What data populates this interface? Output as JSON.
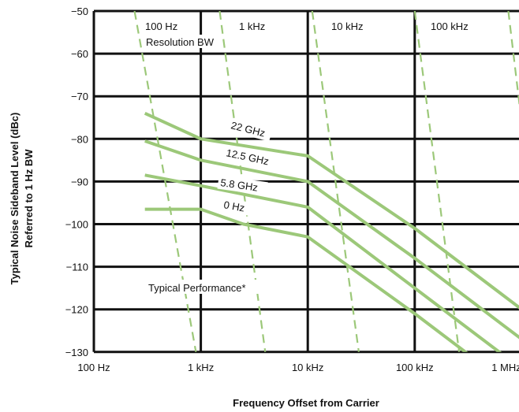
{
  "chart_data": {
    "type": "line",
    "title": "",
    "xlabel": "Frequency Offset from Carrier",
    "ylabel": "Typical Noise Sideband Level (dBc)",
    "ylabel2": "Referred to 1 Hz BW",
    "x_scale": "log",
    "x_ticks": [
      100,
      1000,
      10000,
      100000,
      1000000
    ],
    "x_tick_labels": [
      "100 Hz",
      "1 kHz",
      "10 kHz",
      "100 kHz",
      "1 MHz"
    ],
    "y_ticks": [
      -50,
      -60,
      -70,
      -80,
      -90,
      -100,
      -110,
      -120,
      -130
    ],
    "y_tick_labels": [
      "−50",
      "−60",
      "−70",
      "−80",
      "−90",
      "−100",
      "−110",
      "−120",
      "−130"
    ],
    "xlim": [
      100,
      1000000
    ],
    "ylim": [
      -130,
      -50
    ],
    "grid": true,
    "series": [
      {
        "name": "22 GHz",
        "x": [
          300,
          1000,
          10000,
          100000,
          1000000
        ],
        "y": [
          -74,
          -80,
          -84,
          -101,
          -120
        ],
        "color": "#9cc879"
      },
      {
        "name": "12.5 GHz",
        "x": [
          300,
          1000,
          10000,
          100000,
          1000000
        ],
        "y": [
          -80.5,
          -85,
          -90,
          -108,
          -127
        ],
        "color": "#9cc879"
      },
      {
        "name": "5.8 GHz",
        "x": [
          300,
          1000,
          10000,
          100000,
          1000000
        ],
        "y": [
          -88.5,
          -91,
          -96,
          -115,
          -134
        ],
        "color": "#9cc879"
      },
      {
        "name": "0 Hz",
        "x": [
          300,
          1000,
          2500,
          10000,
          100000,
          1000000
        ],
        "y": [
          -96.5,
          -96.5,
          -100,
          -103,
          -121,
          -140
        ],
        "color": "#9cc879"
      }
    ],
    "resolution_bw": {
      "label": "Resolution BW",
      "color": "#9cc879",
      "lines": [
        {
          "name": "100 Hz",
          "x": [
            240,
            900
          ],
          "y": [
            -50,
            -130
          ]
        },
        {
          "name": "1 kHz",
          "x": [
            1500,
            4000
          ],
          "y": [
            -50,
            -130
          ]
        },
        {
          "name": "10 kHz",
          "x": [
            11000,
            30000
          ],
          "y": [
            -50,
            -130
          ]
        },
        {
          "name": "100 kHz",
          "x": [
            100000,
            260000
          ],
          "y": [
            -50,
            -130
          ]
        },
        {
          "name": "",
          "x": [
            750000,
            1800000
          ],
          "y": [
            -50,
            -130
          ]
        }
      ]
    },
    "annotations": [
      "Typical Performance*"
    ]
  }
}
